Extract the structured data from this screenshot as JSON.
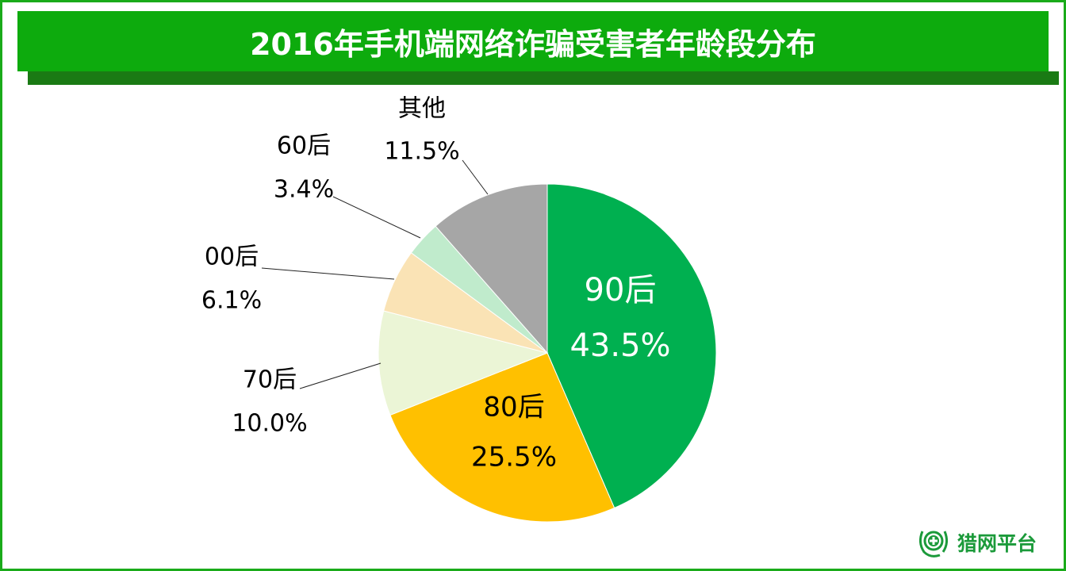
{
  "chart_data": {
    "type": "pie",
    "title": "2016年手机端网络诈骗受害者年龄段分布",
    "start": "top",
    "direction": "clockwise",
    "slices": [
      {
        "label": "90后",
        "value": 43.5,
        "value_label": "43.5%",
        "color": "#00b050"
      },
      {
        "label": "80后",
        "value": 25.5,
        "value_label": "25.5%",
        "color": "#ffc000"
      },
      {
        "label": "70后",
        "value": 10.0,
        "value_label": "10.0%",
        "color": "#ebf5d6"
      },
      {
        "label": "00后",
        "value": 6.1,
        "value_label": "6.1%",
        "color": "#fae3b5"
      },
      {
        "label": "60后",
        "value": 3.4,
        "value_label": "3.4%",
        "color": "#c0ebcc"
      },
      {
        "label": "其他",
        "value": 11.5,
        "value_label": "11.5%",
        "color": "#a6a6a6"
      }
    ]
  },
  "logo": {
    "text": "猎网平台",
    "icon": "cross-laurel-icon",
    "color": "#1b9a3a"
  }
}
